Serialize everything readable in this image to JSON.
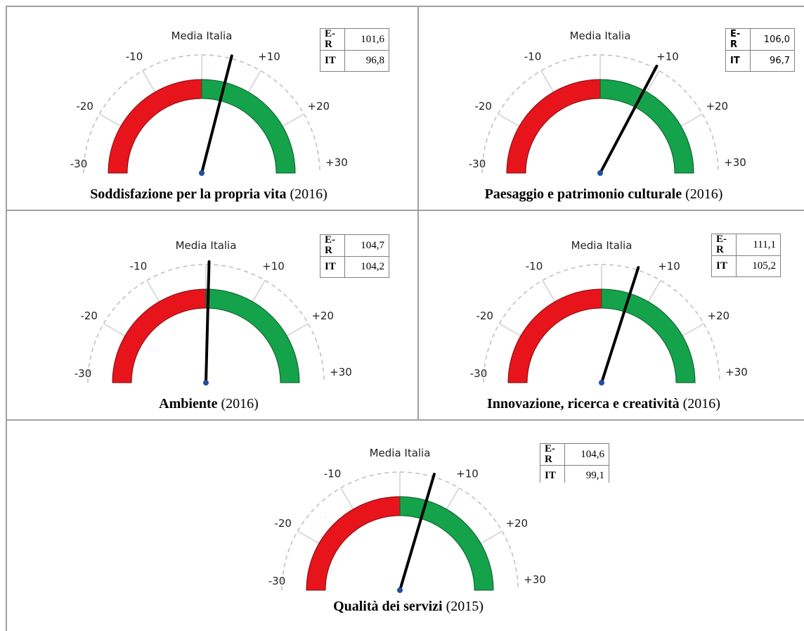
{
  "gauge_labels": {
    "center": "Media Italia",
    "minus30": "-30",
    "minus20": "-20",
    "minus10": "-10",
    "plus10": "+10",
    "plus20": "+20",
    "plus30": "+30"
  },
  "colors": {
    "negative": "#e8141c",
    "positive": "#14a24a",
    "needle": "#000000",
    "pivot": "#1f4fa0",
    "scale": "#bdbdbd"
  },
  "panels": [
    {
      "title": "Soddisfazione per la propria vita",
      "year": "(2016)",
      "row1_label": "E-R",
      "row1_value": "101,6",
      "row2_label": "IT",
      "row2_value": "96,8"
    },
    {
      "title": "Paesaggio e patrimonio culturale",
      "year": "(2016)",
      "row1_label": "E-R",
      "row1_value": "106,0",
      "row2_label": "IT",
      "row2_value": "96,7"
    },
    {
      "title": "Ambiente",
      "year": "(2016)",
      "row1_label": "E-R",
      "row1_value": "104,7",
      "row2_label": "IT",
      "row2_value": "104,2"
    },
    {
      "title": "Innovazione, ricerca e creatività",
      "year": "(2016)",
      "row1_label": "E-R",
      "row1_value": "111,1",
      "row2_label": "IT",
      "row2_value": "105,2"
    },
    {
      "title": "Qualità dei servizi",
      "year": "(2015)",
      "row1_label": "E-R",
      "row1_value": "104,6",
      "row2_label": "IT",
      "row2_value": "99,1"
    }
  ],
  "chart_data": [
    {
      "type": "gauge",
      "scale_min": -30,
      "scale_max": 30,
      "ticks": [
        -30,
        -20,
        -10,
        0,
        10,
        20,
        30
      ],
      "needle_value": 4.8,
      "er_value": 101.6,
      "it_value": 96.8
    },
    {
      "type": "gauge",
      "scale_min": -30,
      "scale_max": 30,
      "ticks": [
        -30,
        -20,
        -10,
        0,
        10,
        20,
        30
      ],
      "needle_value": 9.3,
      "er_value": 106.0,
      "it_value": 96.7
    },
    {
      "type": "gauge",
      "scale_min": -30,
      "scale_max": 30,
      "ticks": [
        -30,
        -20,
        -10,
        0,
        10,
        20,
        30
      ],
      "needle_value": 0.5,
      "er_value": 104.7,
      "it_value": 104.2
    },
    {
      "type": "gauge",
      "scale_min": -30,
      "scale_max": 30,
      "ticks": [
        -30,
        -20,
        -10,
        0,
        10,
        20,
        30
      ],
      "needle_value": 5.9,
      "er_value": 111.1,
      "it_value": 105.2
    },
    {
      "type": "gauge",
      "scale_min": -30,
      "scale_max": 30,
      "ticks": [
        -30,
        -20,
        -10,
        0,
        10,
        20,
        30
      ],
      "needle_value": 5.5,
      "er_value": 104.6,
      "it_value": 99.1
    }
  ]
}
